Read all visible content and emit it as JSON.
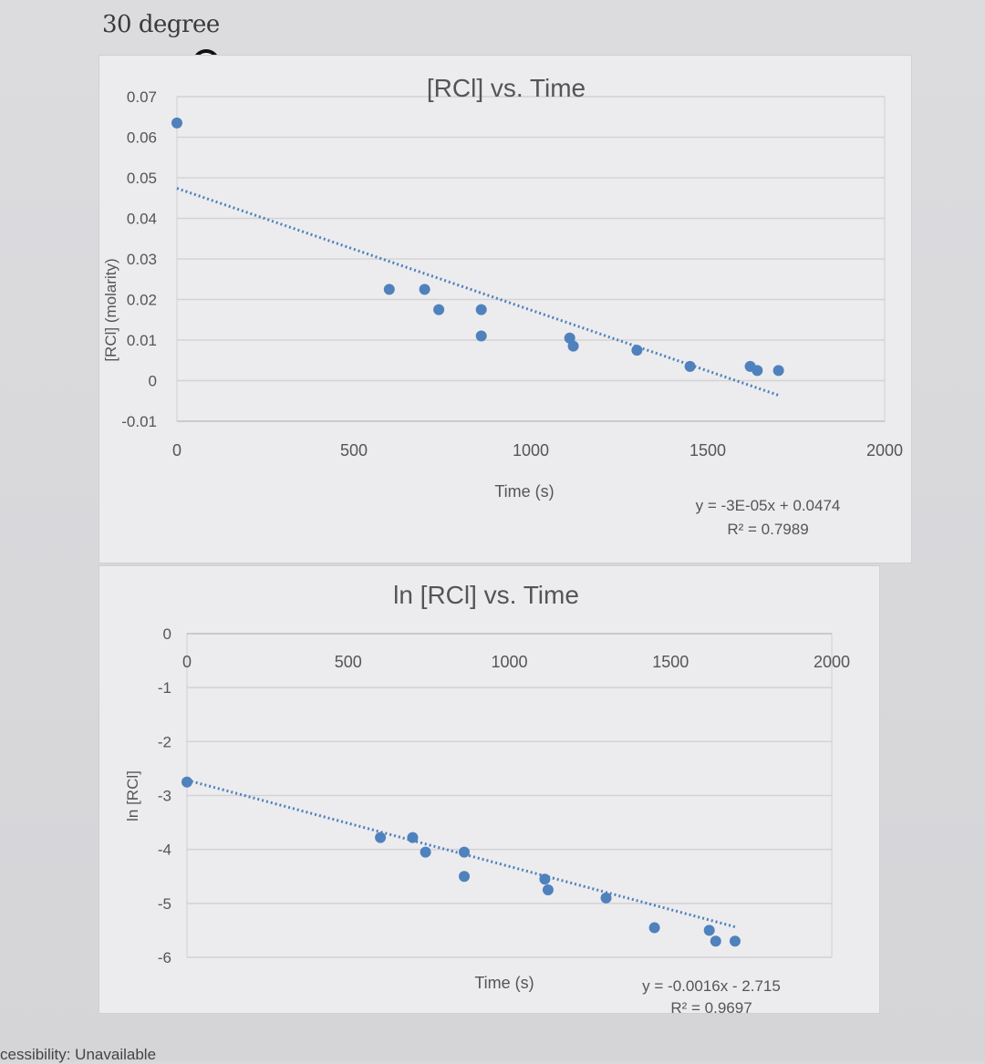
{
  "heading": "30 degree",
  "footer": "cessibility: Unavailable",
  "chart_data": [
    {
      "type": "scatter",
      "title": "[RCl] vs. Time",
      "xlabel": "Time (s)",
      "ylabel": "[RCl] (molarity)",
      "xlim": [
        0,
        2000
      ],
      "ylim": [
        -0.01,
        0.07
      ],
      "xticks": [
        "0",
        "500",
        "1000",
        "1500",
        "2000"
      ],
      "yticks": [
        "-0.01",
        "0",
        "0.01",
        "0.02",
        "0.03",
        "0.04",
        "0.05",
        "0.06",
        "0.07"
      ],
      "grid": true,
      "legend": "none",
      "series": [
        {
          "x": [
            0,
            600,
            700,
            740,
            860,
            860,
            1110,
            1120,
            1300,
            1450,
            1620,
            1640,
            1700
          ],
          "y": [
            0.0635,
            0.0225,
            0.0225,
            0.0175,
            0.0175,
            0.011,
            0.0105,
            0.0085,
            0.0075,
            0.0035,
            0.0035,
            0.0025,
            0.0025
          ],
          "color": "#4f81bd"
        }
      ],
      "trendline": {
        "slope": -3e-05,
        "intercept": 0.0474,
        "x_end": 1700,
        "color": "#4f81bd",
        "style": "dotted"
      },
      "annotations": [
        "y = -3E-05x + 0.0474",
        "R² = 0.7989"
      ]
    },
    {
      "type": "scatter",
      "title": "ln [RCl] vs. Time",
      "xlabel": "Time (s)",
      "ylabel": "ln [RCl]",
      "xlim": [
        0,
        2000
      ],
      "ylim": [
        -6,
        0
      ],
      "xticks": [
        "0",
        "500",
        "1000",
        "1500",
        "2000"
      ],
      "yticks": [
        "0",
        "-1",
        "-2",
        "-3",
        "-4",
        "-5",
        "-6"
      ],
      "grid": true,
      "legend": "none",
      "series": [
        {
          "x": [
            0,
            600,
            700,
            740,
            860,
            860,
            1110,
            1120,
            1300,
            1450,
            1620,
            1640,
            1700
          ],
          "y": [
            -2.75,
            -3.78,
            -3.78,
            -4.05,
            -4.05,
            -4.5,
            -4.55,
            -4.75,
            -4.9,
            -5.45,
            -5.5,
            -5.7,
            -5.7
          ],
          "color": "#4f81bd"
        }
      ],
      "trendline": {
        "slope": -0.0016,
        "intercept": -2.715,
        "x_end": 1700,
        "color": "#4f81bd",
        "style": "dotted"
      },
      "annotations": [
        "y = -0.0016x - 2.715",
        "R² = 0.9697"
      ]
    }
  ]
}
